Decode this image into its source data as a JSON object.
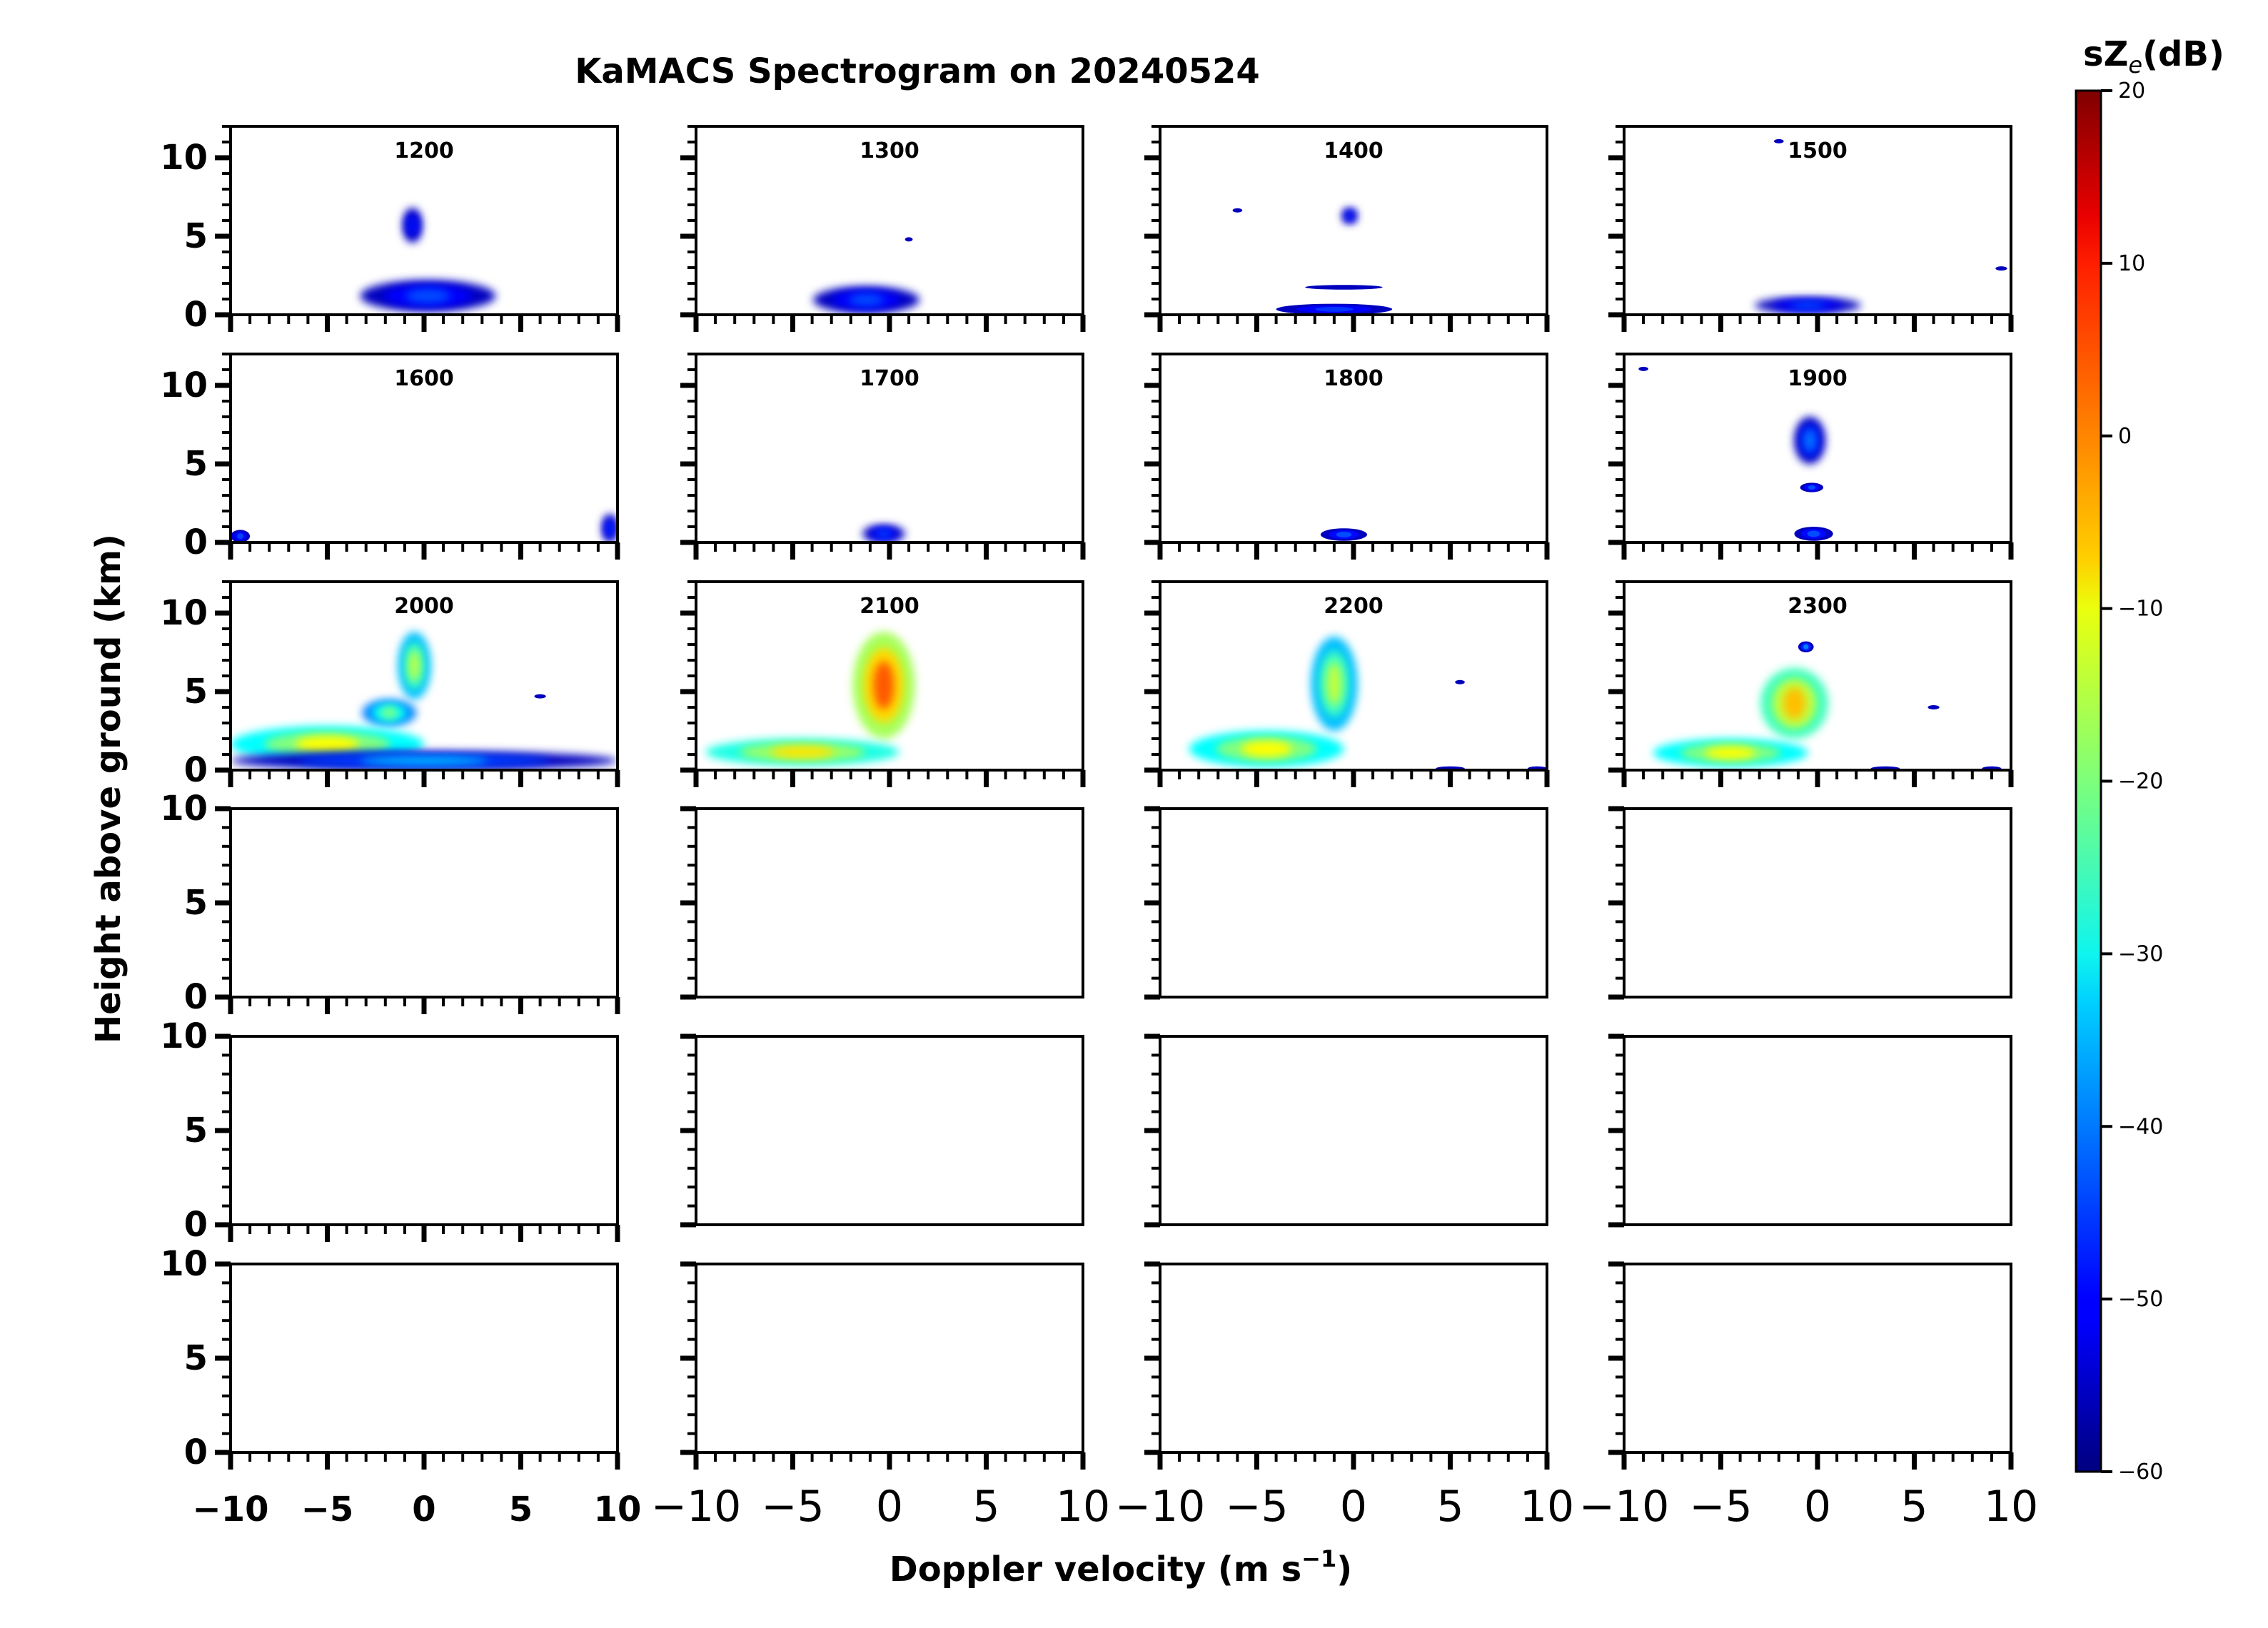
{
  "chart_data": {
    "type": "heatmap",
    "title": "KaMACS Spectrogram on 20240524",
    "xlabel": "Doppler velocity (m s",
    "xlabel_sup": "−1",
    "xlabel_close": ")",
    "ylabel": "Height above ground (km)",
    "xlim": [
      -10,
      10
    ],
    "ylim_top_rows": [
      0,
      12
    ],
    "ylim_bottom_rows": [
      0,
      10
    ],
    "x_ticks": [
      -10,
      -5,
      0,
      5,
      10
    ],
    "x_tick_labels": [
      "−10",
      "−5",
      "0",
      "5",
      "10"
    ],
    "y_ticks_top_rows": [
      0,
      5,
      10
    ],
    "y_tick_labels_top": [
      "0",
      "5",
      "10"
    ],
    "y_ticks_bottom_rows": [
      0,
      5,
      10
    ],
    "y_tick_labels_bottom": [
      "0",
      "5",
      "10"
    ],
    "colorbar": {
      "label": "sZ",
      "label_sub": "e",
      "label_unit": "(dB)",
      "range": [
        -60,
        20
      ],
      "ticks": [
        20,
        10,
        0,
        -10,
        -20,
        -30,
        -40,
        -50,
        -60
      ],
      "tick_labels": [
        "20",
        "10",
        "0",
        "−10",
        "−20",
        "−30",
        "−40",
        "−50",
        "−60"
      ],
      "colormap": "jet"
    },
    "panels": [
      {
        "label": "1200",
        "row": 0,
        "col": 0,
        "echoes": [
          {
            "v": -0.6,
            "h0": 4.6,
            "h1": 6.8,
            "w": 1.0,
            "dbz": -48
          },
          {
            "v": 0.2,
            "h0": 0.2,
            "h1": 2.2,
            "w": 7.0,
            "dbz": -44
          }
        ]
      },
      {
        "label": "1300",
        "row": 0,
        "col": 1,
        "echoes": [
          {
            "v": 1.0,
            "h0": 4.7,
            "h1": 4.9,
            "w": 0.4,
            "dbz": -50
          },
          {
            "v": -1.2,
            "h0": 0.1,
            "h1": 1.8,
            "w": 5.5,
            "dbz": -44
          }
        ]
      },
      {
        "label": "1400",
        "row": 0,
        "col": 2,
        "echoes": [
          {
            "v": -6.0,
            "h0": 6.6,
            "h1": 6.7,
            "w": 0.5,
            "dbz": -50
          },
          {
            "v": -0.2,
            "h0": 5.8,
            "h1": 6.8,
            "w": 0.8,
            "dbz": -46
          },
          {
            "v": -0.5,
            "h0": 1.6,
            "h1": 1.9,
            "w": 4.0,
            "dbz": -46
          },
          {
            "v": -1.0,
            "h0": 0.0,
            "h1": 0.7,
            "w": 6.0,
            "dbz": -46
          }
        ]
      },
      {
        "label": "1500",
        "row": 0,
        "col": 3,
        "echoes": [
          {
            "v": -2.0,
            "h0": 11.0,
            "h1": 11.1,
            "w": 0.5,
            "dbz": -50
          },
          {
            "v": -0.5,
            "h0": 0.1,
            "h1": 1.1,
            "w": 5.5,
            "dbz": -44
          },
          {
            "v": 9.5,
            "h0": 2.9,
            "h1": 3.0,
            "w": 0.6,
            "dbz": -50
          }
        ]
      },
      {
        "label": "1600",
        "row": 1,
        "col": 0,
        "echoes": [
          {
            "v": -9.5,
            "h0": 0.0,
            "h1": 0.8,
            "w": 1.0,
            "dbz": -45
          },
          {
            "v": 9.6,
            "h0": 0.0,
            "h1": 1.8,
            "w": 0.8,
            "dbz": -45
          }
        ]
      },
      {
        "label": "1700",
        "row": 1,
        "col": 1,
        "echoes": [
          {
            "v": -0.3,
            "h0": 0.0,
            "h1": 1.1,
            "w": 2.2,
            "dbz": -44
          }
        ]
      },
      {
        "label": "1800",
        "row": 1,
        "col": 2,
        "echoes": [
          {
            "v": -0.5,
            "h0": 0.1,
            "h1": 0.9,
            "w": 2.4,
            "dbz": -44
          }
        ]
      },
      {
        "label": "1900",
        "row": 1,
        "col": 3,
        "echoes": [
          {
            "v": -9.0,
            "h0": 11.0,
            "h1": 11.1,
            "w": 0.5,
            "dbz": -50
          },
          {
            "v": -0.4,
            "h0": 5.0,
            "h1": 8.0,
            "w": 1.6,
            "dbz": -40
          },
          {
            "v": -0.3,
            "h0": 3.2,
            "h1": 3.8,
            "w": 1.2,
            "dbz": -44
          },
          {
            "v": -0.2,
            "h0": 0.1,
            "h1": 1.0,
            "w": 2.0,
            "dbz": -44
          }
        ]
      },
      {
        "label": "2000",
        "row": 2,
        "col": 0,
        "echoes": [
          {
            "v": -0.5,
            "h0": 4.5,
            "h1": 8.8,
            "w": 1.7,
            "dbz": -15
          },
          {
            "v": -1.8,
            "h0": 2.8,
            "h1": 4.5,
            "w": 2.8,
            "dbz": -20
          },
          {
            "v": -5.0,
            "h0": 0.5,
            "h1": 2.8,
            "w": 10.0,
            "dbz": -10
          },
          {
            "v": 0.0,
            "h0": 0.0,
            "h1": 1.2,
            "w": 20.0,
            "dbz": -35
          },
          {
            "v": 6.0,
            "h0": 4.6,
            "h1": 4.8,
            "w": 0.6,
            "dbz": -48
          }
        ]
      },
      {
        "label": "2100",
        "row": 2,
        "col": 1,
        "echoes": [
          {
            "v": -0.3,
            "h0": 2.0,
            "h1": 8.8,
            "w": 3.2,
            "dbz": 3
          },
          {
            "v": -4.5,
            "h0": 0.3,
            "h1": 2.0,
            "w": 10.0,
            "dbz": -8
          }
        ]
      },
      {
        "label": "2200",
        "row": 2,
        "col": 2,
        "echoes": [
          {
            "v": -1.0,
            "h0": 2.5,
            "h1": 8.5,
            "w": 2.4,
            "dbz": -15
          },
          {
            "v": -4.5,
            "h0": 0.2,
            "h1": 2.5,
            "w": 8.0,
            "dbz": -10
          },
          {
            "v": 5.5,
            "h0": 5.5,
            "h1": 5.7,
            "w": 0.5,
            "dbz": -48
          },
          {
            "v": 5.0,
            "h0": 0.0,
            "h1": 0.2,
            "w": 1.5,
            "dbz": -45
          },
          {
            "v": 9.5,
            "h0": 0.0,
            "h1": 0.2,
            "w": 1.0,
            "dbz": -45
          }
        ]
      },
      {
        "label": "2300",
        "row": 2,
        "col": 3,
        "echoes": [
          {
            "v": -0.6,
            "h0": 7.5,
            "h1": 8.2,
            "w": 0.8,
            "dbz": -40
          },
          {
            "v": -1.2,
            "h0": 2.0,
            "h1": 6.5,
            "w": 3.5,
            "dbz": -5
          },
          {
            "v": -4.5,
            "h0": 0.2,
            "h1": 2.0,
            "w": 8.0,
            "dbz": -10
          },
          {
            "v": 6.0,
            "h0": 3.9,
            "h1": 4.1,
            "w": 0.6,
            "dbz": -48
          },
          {
            "v": 3.5,
            "h0": 0.0,
            "h1": 0.2,
            "w": 1.5,
            "dbz": -45
          },
          {
            "v": 9.0,
            "h0": 0.0,
            "h1": 0.2,
            "w": 1.0,
            "dbz": -45
          }
        ]
      },
      {
        "label": "",
        "row": 3,
        "col": 0,
        "echoes": []
      },
      {
        "label": "",
        "row": 3,
        "col": 1,
        "echoes": []
      },
      {
        "label": "",
        "row": 3,
        "col": 2,
        "echoes": []
      },
      {
        "label": "",
        "row": 3,
        "col": 3,
        "echoes": []
      },
      {
        "label": "",
        "row": 4,
        "col": 0,
        "echoes": []
      },
      {
        "label": "",
        "row": 4,
        "col": 1,
        "echoes": []
      },
      {
        "label": "",
        "row": 4,
        "col": 2,
        "echoes": []
      },
      {
        "label": "",
        "row": 4,
        "col": 3,
        "echoes": []
      },
      {
        "label": "",
        "row": 5,
        "col": 0,
        "echoes": []
      },
      {
        "label": "",
        "row": 5,
        "col": 1,
        "echoes": []
      },
      {
        "label": "",
        "row": 5,
        "col": 2,
        "echoes": []
      },
      {
        "label": "",
        "row": 5,
        "col": 3,
        "echoes": []
      }
    ]
  }
}
